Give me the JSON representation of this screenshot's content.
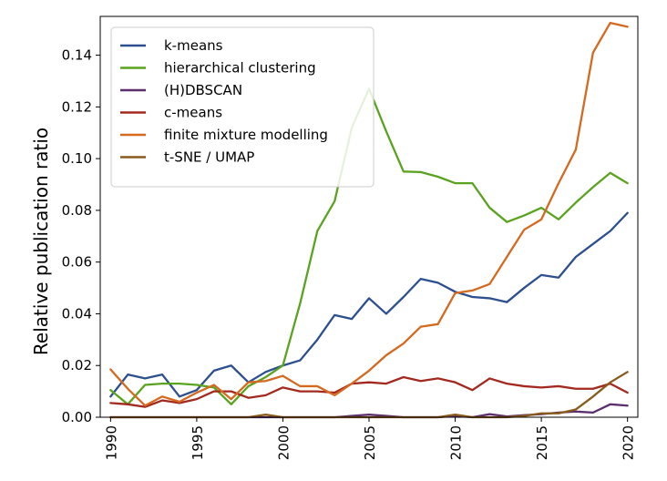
{
  "chart_data": {
    "type": "line",
    "title": "",
    "xlabel": "",
    "ylabel": "Relative publication ratio",
    "xlim": [
      1989.4,
      2020.6
    ],
    "ylim": [
      0,
      0.155
    ],
    "x_ticks": [
      1990,
      1995,
      2000,
      2005,
      2010,
      2015,
      2020
    ],
    "y_ticks": [
      0.0,
      0.02,
      0.04,
      0.06,
      0.08,
      0.1,
      0.12,
      0.14
    ],
    "y_tick_labels": [
      "0.00",
      "0.02",
      "0.04",
      "0.06",
      "0.08",
      "0.10",
      "0.12",
      "0.14"
    ],
    "grid": false,
    "legend": "top-left",
    "x": [
      1990,
      1991,
      1992,
      1993,
      1994,
      1995,
      1996,
      1997,
      1998,
      1999,
      2000,
      2001,
      2002,
      2003,
      2004,
      2005,
      2006,
      2007,
      2008,
      2009,
      2010,
      2011,
      2012,
      2013,
      2014,
      2015,
      2016,
      2017,
      2018,
      2019,
      2020
    ],
    "series": [
      {
        "name": "k-means",
        "color": "#2c4f8f",
        "values": [
          0.008,
          0.0165,
          0.015,
          0.0165,
          0.008,
          0.0105,
          0.018,
          0.02,
          0.0135,
          0.0175,
          0.02,
          0.022,
          0.03,
          0.0395,
          0.038,
          0.046,
          0.04,
          0.0465,
          0.0535,
          0.052,
          0.0485,
          0.0465,
          0.046,
          0.0445,
          0.05,
          0.055,
          0.054,
          0.062,
          0.067,
          0.072,
          0.079
        ]
      },
      {
        "name": "hierarchical clustering",
        "color": "#5aa31f",
        "values": [
          0.0105,
          0.005,
          0.0125,
          0.013,
          0.013,
          0.0125,
          0.0115,
          0.005,
          0.012,
          0.0155,
          0.02,
          0.044,
          0.072,
          0.0835,
          0.112,
          0.127,
          0.1105,
          0.095,
          0.0948,
          0.093,
          0.0905,
          0.0905,
          0.081,
          0.0755,
          0.078,
          0.081,
          0.0765,
          0.083,
          0.089,
          0.0945,
          0.0905
        ]
      },
      {
        "name": "(H)DBSCAN",
        "color": "#5b2e6e",
        "values": [
          0,
          0,
          0,
          0,
          0,
          0,
          0,
          0,
          0,
          0,
          0,
          0,
          0,
          0,
          0.0005,
          0.001,
          0.0005,
          0,
          0,
          0,
          0.0005,
          0,
          0.0012,
          0.0003,
          0.0008,
          0.0012,
          0.0018,
          0.0022,
          0.0018,
          0.005,
          0.0045
        ]
      },
      {
        "name": "c-means",
        "color": "#a3291f",
        "values": [
          0.0055,
          0.005,
          0.004,
          0.0065,
          0.0055,
          0.007,
          0.01,
          0.01,
          0.0075,
          0.0085,
          0.0115,
          0.01,
          0.01,
          0.0095,
          0.013,
          0.0135,
          0.013,
          0.0155,
          0.014,
          0.015,
          0.0135,
          0.0105,
          0.015,
          0.013,
          0.012,
          0.0115,
          0.012,
          0.011,
          0.011,
          0.013,
          0.0095
        ]
      },
      {
        "name": "finite mixture modelling",
        "color": "#d4691f",
        "values": [
          0.0185,
          0.011,
          0.0045,
          0.008,
          0.006,
          0.0095,
          0.0125,
          0.007,
          0.0135,
          0.014,
          0.016,
          0.012,
          0.012,
          0.0085,
          0.013,
          0.018,
          0.024,
          0.0285,
          0.035,
          0.036,
          0.048,
          0.049,
          0.0515,
          0.062,
          0.0725,
          0.0765,
          0.0905,
          0.1035,
          0.141,
          0.1525,
          0.151
        ]
      },
      {
        "name": "t-SNE / UMAP",
        "color": "#8a5a1a",
        "values": [
          0,
          0,
          0,
          0,
          0,
          0,
          0,
          0,
          0,
          0.001,
          0,
          0,
          0,
          0,
          0,
          0,
          0,
          0,
          0,
          0,
          0.001,
          0,
          0,
          0,
          0.0005,
          0.0015,
          0.0015,
          0.003,
          0.008,
          0.0135,
          0.0175
        ]
      }
    ]
  }
}
